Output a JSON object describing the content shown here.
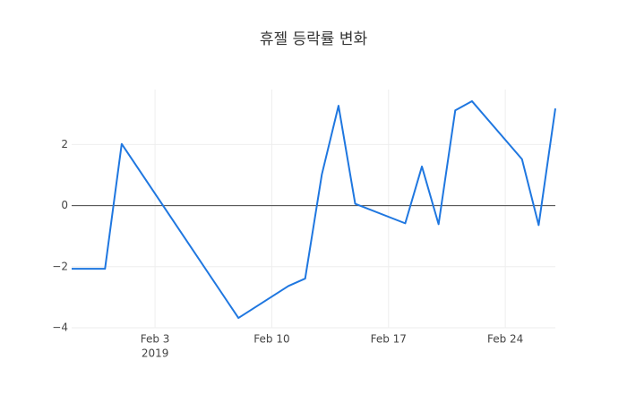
{
  "chart_data": {
    "type": "line",
    "title": "휴젤 등락률 변화",
    "x": [
      "2019-01-29",
      "2019-01-31",
      "2019-02-01",
      "2019-02-08",
      "2019-02-11",
      "2019-02-12",
      "2019-02-13",
      "2019-02-14",
      "2019-02-15",
      "2019-02-18",
      "2019-02-19",
      "2019-02-20",
      "2019-02-21",
      "2019-02-22",
      "2019-02-25",
      "2019-02-26",
      "2019-02-27"
    ],
    "series": [
      {
        "name": "등락률",
        "color": "#1f77e0",
        "values": [
          -2.07,
          -2.07,
          2.02,
          -3.68,
          -2.63,
          -2.39,
          1.02,
          3.27,
          0.06,
          -0.58,
          1.28,
          -0.61,
          3.12,
          3.42,
          1.52,
          -0.64,
          3.18
        ]
      }
    ],
    "xlim": [
      "2019-01-29",
      "2019-02-27"
    ],
    "xticks": [
      {
        "value": "2019-02-03",
        "label": "Feb 3"
      },
      {
        "value": "2019-02-10",
        "label": "Feb 10"
      },
      {
        "value": "2019-02-17",
        "label": "Feb 17"
      },
      {
        "value": "2019-02-24",
        "label": "Feb 24"
      }
    ],
    "x_year_label": "2019",
    "ylim": [
      -4,
      3.8
    ],
    "yticks": [
      {
        "value": -4,
        "label": "−4"
      },
      {
        "value": -2,
        "label": "−2"
      },
      0,
      2
    ],
    "grid": true,
    "zero_line": true
  }
}
